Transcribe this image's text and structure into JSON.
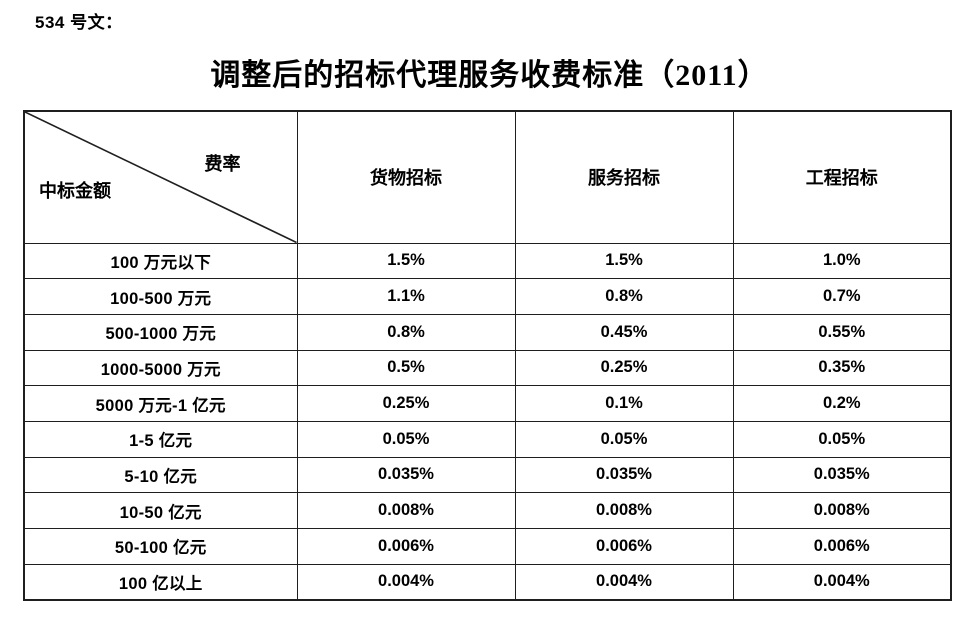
{
  "document": {
    "doc_label": "534 号文：",
    "title": "调整后的招标代理服务收费标准（2011）"
  },
  "table": {
    "corner": {
      "top_right_label": "费率",
      "bottom_left_label": "中标金额"
    },
    "columns": [
      "货物招标",
      "服务招标",
      "工程招标"
    ],
    "rows": [
      {
        "label": "100 万元以下",
        "values": [
          "1.5%",
          "1.5%",
          "1.0%"
        ]
      },
      {
        "label": "100-500 万元",
        "values": [
          "1.1%",
          "0.8%",
          "0.7%"
        ]
      },
      {
        "label": "500-1000 万元",
        "values": [
          "0.8%",
          "0.45%",
          "0.55%"
        ]
      },
      {
        "label": "1000-5000 万元",
        "values": [
          "0.5%",
          "0.25%",
          "0.35%"
        ]
      },
      {
        "label": "5000 万元-1 亿元",
        "values": [
          "0.25%",
          "0.1%",
          "0.2%"
        ]
      },
      {
        "label": "1-5 亿元",
        "values": [
          "0.05%",
          "0.05%",
          "0.05%"
        ]
      },
      {
        "label": "5-10 亿元",
        "values": [
          "0.035%",
          "0.035%",
          "0.035%"
        ]
      },
      {
        "label": "10-50 亿元",
        "values": [
          "0.008%",
          "0.008%",
          "0.008%"
        ]
      },
      {
        "label": "50-100 亿元",
        "values": [
          "0.006%",
          "0.006%",
          "0.006%"
        ]
      },
      {
        "label": "100 亿以上",
        "values": [
          "0.004%",
          "0.004%",
          "0.004%"
        ]
      }
    ]
  },
  "colors": {
    "text": "#000000",
    "border": "#1f1f1f",
    "background": "#ffffff"
  }
}
